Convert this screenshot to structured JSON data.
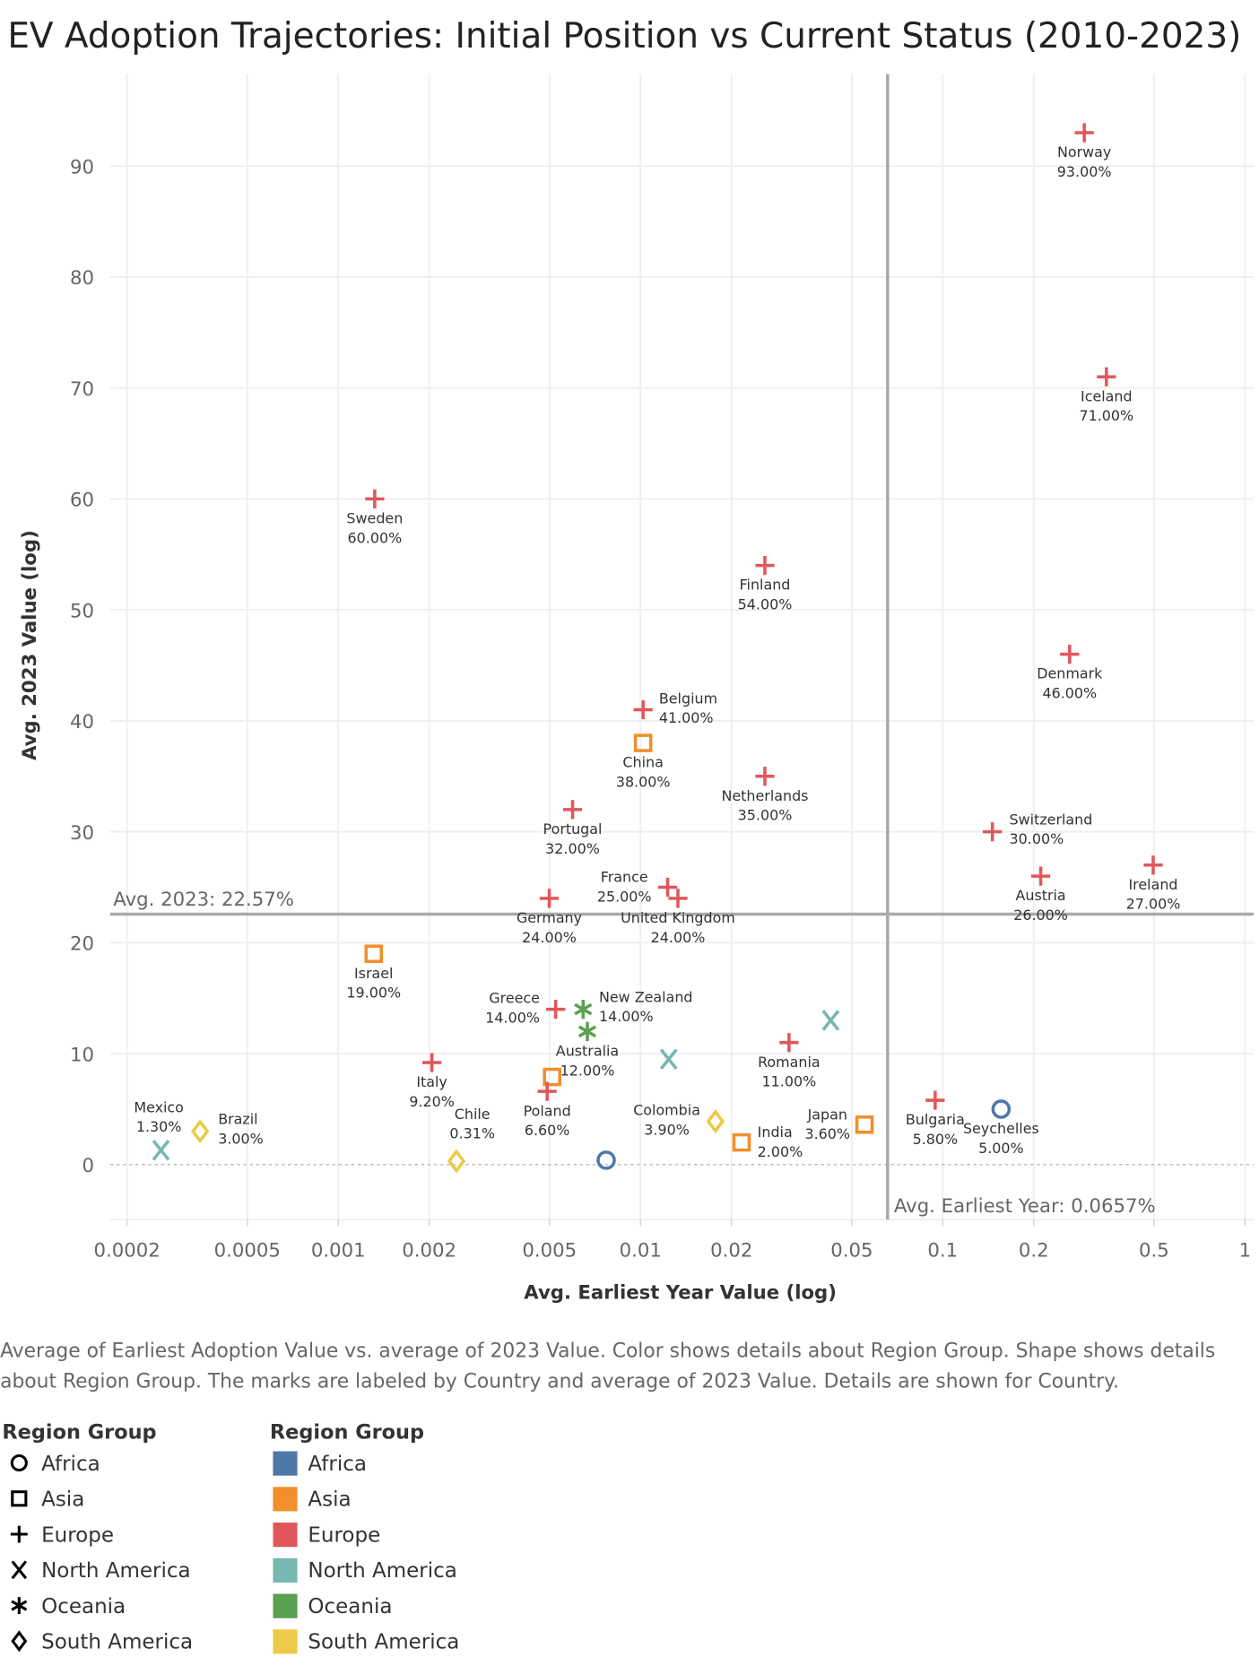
{
  "chart_data": {
    "type": "scatter",
    "title": "EV Adoption Trajectories: Initial Position vs Current Status (2010-2023)",
    "xlabel": "Avg. Earliest Year Value (log)",
    "ylabel": "Avg. 2023 Value (log)",
    "x_scale": "log",
    "y_scale": "linear",
    "xlim": [
      0.00015,
      1.1
    ],
    "ylim": [
      -5,
      98
    ],
    "x_ticks": [
      "0.0002",
      "0.0005",
      "0.001",
      "0.002",
      "0.005",
      "0.01",
      "0.02",
      "0.05",
      "0.1",
      "0.2",
      "0.5",
      "1"
    ],
    "x_tick_values": [
      0.0002,
      0.0005,
      0.001,
      0.002,
      0.005,
      0.01,
      0.02,
      0.05,
      0.1,
      0.2,
      0.5,
      1
    ],
    "y_ticks": [
      0,
      10,
      20,
      30,
      40,
      50,
      60,
      70,
      80,
      90
    ],
    "grid": true,
    "reference_lines": {
      "avg_2023": {
        "value": 22.57,
        "label": "Avg. 2023: 22.57%"
      },
      "avg_earliest": {
        "value": 0.0657,
        "label": "Avg. Earliest Year: 0.0657%"
      }
    },
    "colors": {
      "Africa": "#4e79a7",
      "Asia": "#f28e2b",
      "Europe": "#e15759",
      "North America": "#76b7b2",
      "Oceania": "#59a14f",
      "South America": "#edc948"
    },
    "shapes": {
      "Africa": "circle",
      "Asia": "square",
      "Europe": "plus",
      "North America": "x",
      "Oceania": "asterisk",
      "South America": "diamond"
    },
    "points": [
      {
        "country": "Norway",
        "region": "Europe",
        "x": 0.294,
        "y": 93,
        "value_label": "93.00%"
      },
      {
        "country": "Iceland",
        "region": "Europe",
        "x": 0.348,
        "y": 71,
        "value_label": "71.00%"
      },
      {
        "country": "Sweden",
        "region": "Europe",
        "x": 0.00132,
        "y": 60,
        "value_label": "60.00%"
      },
      {
        "country": "Finland",
        "region": "Europe",
        "x": 0.0258,
        "y": 54,
        "value_label": "54.00%"
      },
      {
        "country": "Denmark",
        "region": "Europe",
        "x": 0.263,
        "y": 46,
        "value_label": "46.00%"
      },
      {
        "country": "Belgium",
        "region": "Europe",
        "x": 0.0102,
        "y": 41,
        "value_label": "41.00%"
      },
      {
        "country": "China",
        "region": "Asia",
        "x": 0.0102,
        "y": 38,
        "value_label": "38.00%"
      },
      {
        "country": "Netherlands",
        "region": "Europe",
        "x": 0.0258,
        "y": 35,
        "value_label": "35.00%"
      },
      {
        "country": "Portugal",
        "region": "Europe",
        "x": 0.00596,
        "y": 32,
        "value_label": "32.00%"
      },
      {
        "country": "Switzerland",
        "region": "Europe",
        "x": 0.146,
        "y": 30,
        "value_label": "30.00%"
      },
      {
        "country": "Ireland",
        "region": "Europe",
        "x": 0.497,
        "y": 27,
        "value_label": "27.00%"
      },
      {
        "country": "Austria",
        "region": "Europe",
        "x": 0.211,
        "y": 26,
        "value_label": "26.00%"
      },
      {
        "country": "France",
        "region": "Europe",
        "x": 0.0123,
        "y": 25,
        "value_label": "25.00%"
      },
      {
        "country": "United Kingdom",
        "region": "Europe",
        "x": 0.0133,
        "y": 24,
        "value_label": "24.00%"
      },
      {
        "country": "Germany",
        "region": "Europe",
        "x": 0.00499,
        "y": 24,
        "value_label": "24.00%"
      },
      {
        "country": "Israel",
        "region": "Asia",
        "x": 0.00131,
        "y": 19,
        "value_label": "19.00%"
      },
      {
        "country": "Greece",
        "region": "Europe",
        "x": 0.00524,
        "y": 14,
        "value_label": "14.00%"
      },
      {
        "country": "New Zealand",
        "region": "Oceania",
        "x": 0.00646,
        "y": 14,
        "value_label": "14.00%"
      },
      {
        "country": "Australia",
        "region": "Oceania",
        "x": 0.00667,
        "y": 12,
        "value_label": "12.00%"
      },
      {
        "country": "",
        "region": "North America",
        "x": 0.0426,
        "y": 13,
        "value_label": ""
      },
      {
        "country": "Romania",
        "region": "Europe",
        "x": 0.031,
        "y": 11,
        "value_label": "11.00%"
      },
      {
        "country": "",
        "region": "North America",
        "x": 0.0124,
        "y": 9.5,
        "value_label": ""
      },
      {
        "country": "Italy",
        "region": "Europe",
        "x": 0.00204,
        "y": 9.2,
        "value_label": "9.20%"
      },
      {
        "country": "",
        "region": "Asia",
        "x": 0.0051,
        "y": 7.9,
        "value_label": ""
      },
      {
        "country": "Poland",
        "region": "Europe",
        "x": 0.00491,
        "y": 6.6,
        "value_label": "6.60%"
      },
      {
        "country": "Bulgaria",
        "region": "Europe",
        "x": 0.0944,
        "y": 5.8,
        "value_label": "5.80%"
      },
      {
        "country": "Seychelles",
        "region": "Africa",
        "x": 0.156,
        "y": 5,
        "value_label": "5.00%"
      },
      {
        "country": "Colombia",
        "region": "South America",
        "x": 0.0177,
        "y": 3.9,
        "value_label": "3.90%"
      },
      {
        "country": "Japan",
        "region": "Asia",
        "x": 0.0551,
        "y": 3.6,
        "value_label": "3.60%"
      },
      {
        "country": "Brazil",
        "region": "South America",
        "x": 0.000349,
        "y": 3,
        "value_label": "3.00%"
      },
      {
        "country": "India",
        "region": "Asia",
        "x": 0.0216,
        "y": 2,
        "value_label": "2.00%"
      },
      {
        "country": "Mexico",
        "region": "North America",
        "x": 0.000259,
        "y": 1.3,
        "value_label": "1.30%"
      },
      {
        "country": "",
        "region": "Africa",
        "x": 0.0077,
        "y": 0.4,
        "value_label": ""
      },
      {
        "country": "Chile",
        "region": "South America",
        "x": 0.00246,
        "y": 0.31,
        "value_label": "0.31%"
      }
    ]
  },
  "caption": [
    "Average of Earliest Adoption Value vs. average of 2023 Value.  Color shows details about Region Group.  Shape shows details",
    "about Region Group.  The marks are labeled by Country and average of 2023 Value.  Details are shown for Country."
  ],
  "legend": {
    "shape_title": "Region Group",
    "color_title": "Region Group",
    "items": [
      "Africa",
      "Asia",
      "Europe",
      "North America",
      "Oceania",
      "South America"
    ]
  }
}
